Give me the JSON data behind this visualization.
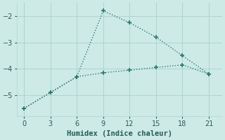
{
  "line1_x": [
    0,
    3,
    6,
    9,
    12,
    15,
    18,
    21
  ],
  "line1_y": [
    -5.5,
    -4.9,
    -4.3,
    -1.8,
    -2.25,
    -2.8,
    -3.5,
    -4.2
  ],
  "line2_x": [
    0,
    3,
    6,
    9,
    12,
    15,
    18,
    21
  ],
  "line2_y": [
    -5.5,
    -4.9,
    -4.3,
    -4.15,
    -4.05,
    -3.95,
    -3.85,
    -4.2
  ],
  "color": "#2a7a6e",
  "bg_color": "#cdeae6",
  "grid_color": "#aed4ce",
  "xlabel": "Humidex (Indice chaleur)",
  "xlim": [
    -0.8,
    22.5
  ],
  "ylim": [
    -5.8,
    -1.5
  ],
  "xticks": [
    0,
    3,
    6,
    9,
    12,
    15,
    18,
    21
  ],
  "yticks": [
    -5,
    -4,
    -3,
    -2
  ],
  "font_color": "#2a5a54",
  "linewidth": 1.0,
  "markersize": 3.0
}
